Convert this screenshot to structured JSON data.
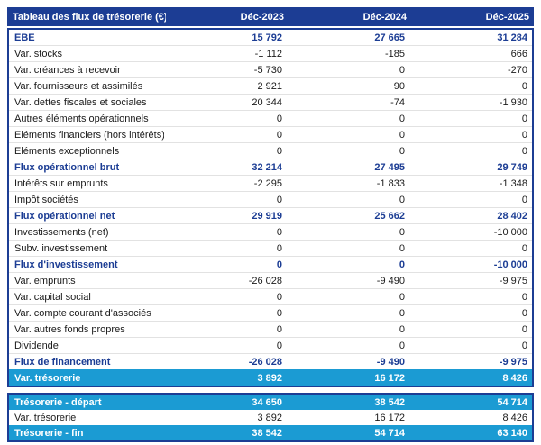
{
  "colors": {
    "header_bg": "#1c3d94",
    "header_text": "#ffffff",
    "highlight_bg": "#1b9bd3",
    "bold_row_text": "#1c3d94",
    "body_text": "#1a1a1a",
    "row_divider": "#e2e2e2"
  },
  "table": {
    "title": "Tableau des flux de trésorerie (€)",
    "columns": [
      "Déc-2023",
      "Déc-2024",
      "Déc-2025"
    ],
    "rows": [
      {
        "label": "EBE",
        "values": [
          "15 792",
          "27 665",
          "31 284"
        ],
        "style": "bold"
      },
      {
        "label": "Var. stocks",
        "values": [
          "-1 112",
          "-185",
          "666"
        ],
        "style": "normal"
      },
      {
        "label": "Var. créances à recevoir",
        "values": [
          "-5 730",
          "0",
          "-270"
        ],
        "style": "normal"
      },
      {
        "label": "Var. fournisseurs et assimilés",
        "values": [
          "2 921",
          "90",
          "0"
        ],
        "style": "normal"
      },
      {
        "label": "Var. dettes fiscales et sociales",
        "values": [
          "20 344",
          "-74",
          "-1 930"
        ],
        "style": "normal"
      },
      {
        "label": "Autres éléments opérationnels",
        "values": [
          "0",
          "0",
          "0"
        ],
        "style": "normal"
      },
      {
        "label": "Eléments financiers (hors intérêts)",
        "values": [
          "0",
          "0",
          "0"
        ],
        "style": "normal"
      },
      {
        "label": "Eléments exceptionnels",
        "values": [
          "0",
          "0",
          "0"
        ],
        "style": "normal"
      },
      {
        "label": "Flux opérationnel brut",
        "values": [
          "32 214",
          "27 495",
          "29 749"
        ],
        "style": "bold"
      },
      {
        "label": "Intérêts sur emprunts",
        "values": [
          "-2 295",
          "-1 833",
          "-1 348"
        ],
        "style": "normal"
      },
      {
        "label": "Impôt sociétés",
        "values": [
          "0",
          "0",
          "0"
        ],
        "style": "normal"
      },
      {
        "label": "Flux opérationnel net",
        "values": [
          "29 919",
          "25 662",
          "28 402"
        ],
        "style": "bold"
      },
      {
        "label": "Investissements (net)",
        "values": [
          "0",
          "0",
          "-10 000"
        ],
        "style": "normal"
      },
      {
        "label": "Subv. investissement",
        "values": [
          "0",
          "0",
          "0"
        ],
        "style": "normal"
      },
      {
        "label": "Flux d'investissement",
        "values": [
          "0",
          "0",
          "-10 000"
        ],
        "style": "bold"
      },
      {
        "label": "Var. emprunts",
        "values": [
          "-26 028",
          "-9 490",
          "-9 975"
        ],
        "style": "normal"
      },
      {
        "label": "Var. capital social",
        "values": [
          "0",
          "0",
          "0"
        ],
        "style": "normal"
      },
      {
        "label": "Var. compte courant d'associés",
        "values": [
          "0",
          "0",
          "0"
        ],
        "style": "normal"
      },
      {
        "label": "Var. autres fonds propres",
        "values": [
          "0",
          "0",
          "0"
        ],
        "style": "normal"
      },
      {
        "label": "Dividende",
        "values": [
          "0",
          "0",
          "0"
        ],
        "style": "normal"
      },
      {
        "label": "Flux de financement",
        "values": [
          "-26 028",
          "-9 490",
          "-9 975"
        ],
        "style": "bold"
      },
      {
        "label": "Var. trésorerie",
        "values": [
          "3 892",
          "16 172",
          "8 426"
        ],
        "style": "highlight"
      }
    ],
    "summary_rows": [
      {
        "label": "Trésorerie - départ",
        "values": [
          "34 650",
          "38 542",
          "54 714"
        ],
        "style": "highlight"
      },
      {
        "label": "Var. trésorerie",
        "values": [
          "3 892",
          "16 172",
          "8 426"
        ],
        "style": "normal"
      },
      {
        "label": "Trésorerie - fin",
        "values": [
          "38 542",
          "54 714",
          "63 140"
        ],
        "style": "highlight"
      }
    ]
  }
}
